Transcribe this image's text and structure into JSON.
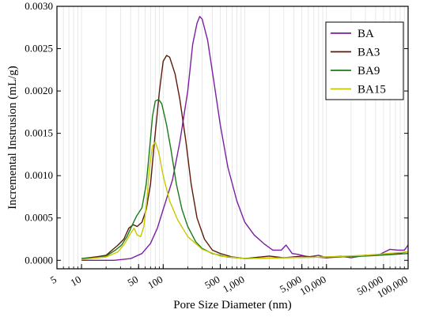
{
  "chart_data": {
    "type": "line",
    "title": "",
    "xlabel": "Pore Size Diameter (nm)",
    "ylabel": "Incremental Instrusion (mL/g)",
    "xscale": "log",
    "xlim": [
      5,
      100000
    ],
    "ylim": [
      -0.0001,
      0.003
    ],
    "x_tick_values": [
      5,
      10,
      50,
      100,
      500,
      1000,
      5000,
      10000,
      50000,
      100000
    ],
    "x_tick_labels": [
      "5",
      "10",
      "50",
      "100",
      "500",
      "1,000",
      "5,000",
      "10,000",
      "50,000",
      "100,000"
    ],
    "y_tick_values": [
      0,
      0.0005,
      0.001,
      0.0015,
      0.002,
      0.0025,
      0.003
    ],
    "y_tick_labels": [
      "0.0000",
      "0.0005",
      "0.0010",
      "0.0015",
      "0.0020",
      "0.0025",
      "0.0030"
    ],
    "grid": "vertical minor log gridlines",
    "legend_position": "top-right",
    "series": [
      {
        "name": "BA",
        "color": "#7b1fa2",
        "points": [
          [
            10,
            0
          ],
          [
            25,
            0
          ],
          [
            40,
            2e-05
          ],
          [
            55,
            8e-05
          ],
          [
            70,
            0.0002
          ],
          [
            85,
            0.00038
          ],
          [
            100,
            0.0006
          ],
          [
            130,
            0.00095
          ],
          [
            160,
            0.0014
          ],
          [
            200,
            0.002
          ],
          [
            230,
            0.00255
          ],
          [
            260,
            0.0028
          ],
          [
            280,
            0.00288
          ],
          [
            300,
            0.00285
          ],
          [
            350,
            0.0026
          ],
          [
            420,
            0.0021
          ],
          [
            500,
            0.0016
          ],
          [
            620,
            0.0011
          ],
          [
            800,
            0.0007
          ],
          [
            1000,
            0.00045
          ],
          [
            1300,
            0.0003
          ],
          [
            1700,
            0.0002
          ],
          [
            2200,
            0.00012
          ],
          [
            2800,
            0.00012
          ],
          [
            3200,
            0.00018
          ],
          [
            3800,
            8e-05
          ],
          [
            4500,
            7e-05
          ],
          [
            6000,
            4e-05
          ],
          [
            8000,
            6e-05
          ],
          [
            10000,
            3e-05
          ],
          [
            15000,
            5e-05
          ],
          [
            20000,
            3e-05
          ],
          [
            30000,
            6e-05
          ],
          [
            45000,
            7e-05
          ],
          [
            60000,
            0.00013
          ],
          [
            75000,
            0.00012
          ],
          [
            90000,
            0.00012
          ],
          [
            100000,
            0.00018
          ]
        ]
      },
      {
        "name": "BA3",
        "color": "#5d1a0b",
        "points": [
          [
            10,
            2e-05
          ],
          [
            15,
            4e-05
          ],
          [
            20,
            6e-05
          ],
          [
            28,
            0.00018
          ],
          [
            33,
            0.00025
          ],
          [
            38,
            0.00038
          ],
          [
            43,
            0.00042
          ],
          [
            48,
            0.0004
          ],
          [
            55,
            0.00045
          ],
          [
            62,
            0.0006
          ],
          [
            70,
            0.0009
          ],
          [
            80,
            0.0015
          ],
          [
            90,
            0.002
          ],
          [
            100,
            0.00235
          ],
          [
            110,
            0.00242
          ],
          [
            120,
            0.0024
          ],
          [
            140,
            0.0022
          ],
          [
            160,
            0.0019
          ],
          [
            190,
            0.0014
          ],
          [
            220,
            0.0009
          ],
          [
            260,
            0.0005
          ],
          [
            320,
            0.00025
          ],
          [
            400,
            0.00012
          ],
          [
            500,
            8e-05
          ],
          [
            700,
            4e-05
          ],
          [
            1000,
            2e-05
          ],
          [
            2000,
            5e-05
          ],
          [
            3000,
            3e-05
          ],
          [
            5000,
            5e-05
          ],
          [
            10000,
            3e-05
          ],
          [
            30000,
            6e-05
          ],
          [
            60000,
            7e-05
          ],
          [
            100000,
            0.0001
          ]
        ]
      },
      {
        "name": "BA9",
        "color": "#1b7a1b",
        "points": [
          [
            10,
            2e-05
          ],
          [
            15,
            3e-05
          ],
          [
            20,
            5e-05
          ],
          [
            26,
            0.00012
          ],
          [
            31,
            0.00018
          ],
          [
            36,
            0.00028
          ],
          [
            42,
            0.00042
          ],
          [
            47,
            0.00052
          ],
          [
            55,
            0.00062
          ],
          [
            62,
            0.0009
          ],
          [
            68,
            0.0013
          ],
          [
            74,
            0.0017
          ],
          [
            80,
            0.00188
          ],
          [
            88,
            0.0019
          ],
          [
            96,
            0.00185
          ],
          [
            110,
            0.0016
          ],
          [
            125,
            0.0013
          ],
          [
            145,
            0.0009
          ],
          [
            170,
            0.0006
          ],
          [
            200,
            0.0004
          ],
          [
            250,
            0.00022
          ],
          [
            300,
            0.00014
          ],
          [
            400,
            8e-05
          ],
          [
            600,
            4e-05
          ],
          [
            1000,
            2e-05
          ],
          [
            3000,
            3e-05
          ],
          [
            10000,
            4e-05
          ],
          [
            30000,
            5e-05
          ],
          [
            100000,
            8e-05
          ]
        ]
      },
      {
        "name": "BA15",
        "color": "#c8c800",
        "points": [
          [
            10,
            1e-05
          ],
          [
            20,
            4e-05
          ],
          [
            28,
            0.0001
          ],
          [
            34,
            0.0002
          ],
          [
            40,
            0.00032
          ],
          [
            44,
            0.00038
          ],
          [
            48,
            0.0003
          ],
          [
            53,
            0.00028
          ],
          [
            58,
            0.0004
          ],
          [
            63,
            0.0007
          ],
          [
            68,
            0.0011
          ],
          [
            74,
            0.00135
          ],
          [
            80,
            0.0014
          ],
          [
            88,
            0.00128
          ],
          [
            100,
            0.001
          ],
          [
            120,
            0.0007
          ],
          [
            150,
            0.00048
          ],
          [
            200,
            0.00028
          ],
          [
            300,
            0.00013
          ],
          [
            500,
            5e-05
          ],
          [
            1000,
            2e-05
          ],
          [
            3000,
            3e-05
          ],
          [
            10000,
            4e-05
          ],
          [
            30000,
            6e-05
          ],
          [
            100000,
            0.0001
          ]
        ]
      }
    ]
  }
}
